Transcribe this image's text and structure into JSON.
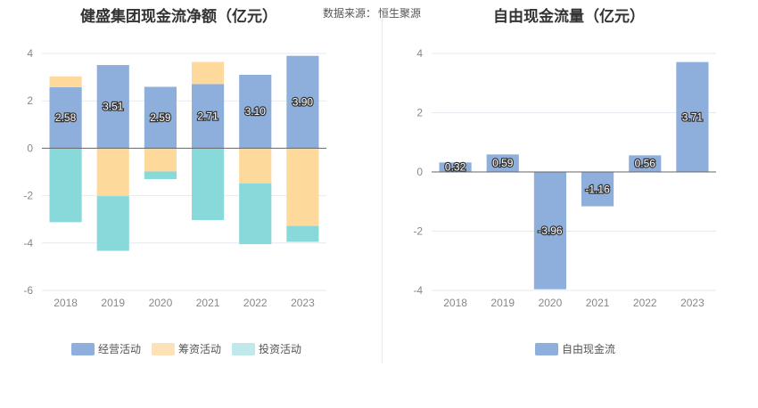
{
  "header": {
    "left_title": "健盛集团现金流净额（亿元）",
    "source_label": "数据来源：",
    "source_value": "恒生聚源",
    "right_title": "自由现金流量（亿元）"
  },
  "colors": {
    "operating": "#8eaedc",
    "financing": "#fdd99b",
    "investing": "#88d9d9",
    "free_cash_flow": "#8eaedc",
    "grid": "#e6e9f0",
    "zero_line": "#666666"
  },
  "legend_left": [
    {
      "label": "经营活动",
      "color": "#8eaedc"
    },
    {
      "label": "筹资活动",
      "color": "#fde2b8"
    },
    {
      "label": "投资活动",
      "color": "#bfe9ea"
    }
  ],
  "legend_right": [
    {
      "label": "自由现金流",
      "color": "#8eaedc"
    }
  ],
  "chart_data": [
    {
      "type": "bar",
      "stacked": true,
      "title": "健盛集团现金流净额（亿元）",
      "categories": [
        "2018",
        "2019",
        "2020",
        "2021",
        "2022",
        "2023"
      ],
      "ylim": [
        -6,
        4
      ],
      "yticks": [
        -6,
        -4,
        -2,
        0,
        2,
        4
      ],
      "grid": true,
      "legend_position": "bottom",
      "series": [
        {
          "name": "经营活动",
          "values": [
            2.58,
            3.51,
            2.59,
            2.71,
            3.1,
            3.9
          ],
          "labels": [
            "2.58",
            "3.51",
            "2.59",
            "2.71",
            "3.10",
            "3.90"
          ],
          "color": "#8eaedc"
        },
        {
          "name": "筹资活动",
          "values": [
            0.45,
            -2.02,
            -0.98,
            0.93,
            -1.48,
            -3.28
          ],
          "color": "#fdd99b"
        },
        {
          "name": "投资活动",
          "values": [
            -3.12,
            -2.31,
            -0.32,
            -3.03,
            -2.57,
            -0.67
          ],
          "color": "#88d9d9"
        }
      ]
    },
    {
      "type": "bar",
      "title": "自由现金流量（亿元）",
      "categories": [
        "2018",
        "2019",
        "2020",
        "2021",
        "2022",
        "2023"
      ],
      "ylim": [
        -4,
        4
      ],
      "yticks": [
        -4,
        -2,
        0,
        2,
        4
      ],
      "grid": true,
      "legend_position": "bottom",
      "series": [
        {
          "name": "自由现金流",
          "values": [
            0.32,
            0.59,
            -3.96,
            -1.16,
            0.56,
            3.71
          ],
          "labels": [
            "0.32",
            "0.59",
            "-3.96",
            "-1.16",
            "0.56",
            "3.71"
          ],
          "color": "#8eaedc"
        }
      ]
    }
  ]
}
